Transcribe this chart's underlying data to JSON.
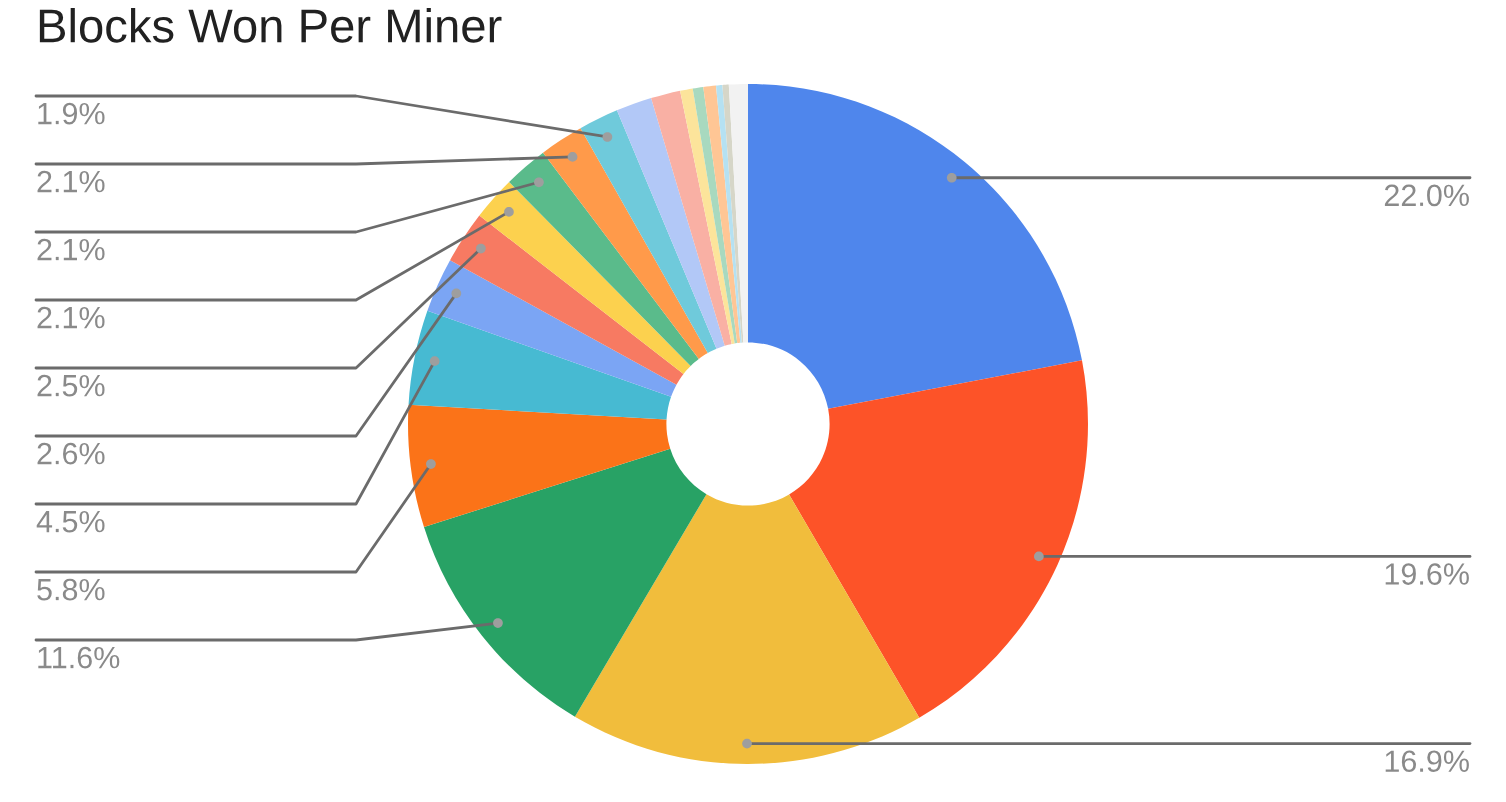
{
  "chart_data": {
    "type": "donut",
    "title": "Blocks Won Per Miner",
    "categories": [
      null,
      null,
      null,
      null,
      null,
      null,
      null,
      null,
      null,
      null,
      null,
      null,
      null,
      null,
      null,
      null,
      null,
      null,
      null,
      null
    ],
    "values": [
      22.0,
      19.6,
      16.9,
      11.6,
      5.8,
      4.5,
      2.6,
      2.5,
      2.1,
      2.1,
      2.1,
      1.9,
      1.7,
      1.4,
      0.6,
      0.5,
      0.6,
      0.3,
      0.3,
      0.9
    ],
    "colors": [
      "#4f86ec",
      "#fd5328",
      "#f1bd3c",
      "#28a265",
      "#fb7318",
      "#47bad2",
      "#7ba5f4",
      "#f77a62",
      "#fcd14e",
      "#5abb8b",
      "#ff9a4a",
      "#6fcadb",
      "#b2c8f7",
      "#f9b0a4",
      "#fce49b",
      "#a8d9bf",
      "#ffc695",
      "#b5e1f2",
      "#d6d6c8",
      "#f2f2f2"
    ],
    "value_labels": [
      "22.0%",
      "19.6%",
      "16.9%",
      "11.6%",
      "5.8%",
      "4.5%",
      "2.6%",
      "2.5%",
      "2.1%",
      "2.1%",
      "2.1%",
      "1.9%",
      null,
      null,
      null,
      null,
      null,
      null,
      null,
      null
    ]
  }
}
